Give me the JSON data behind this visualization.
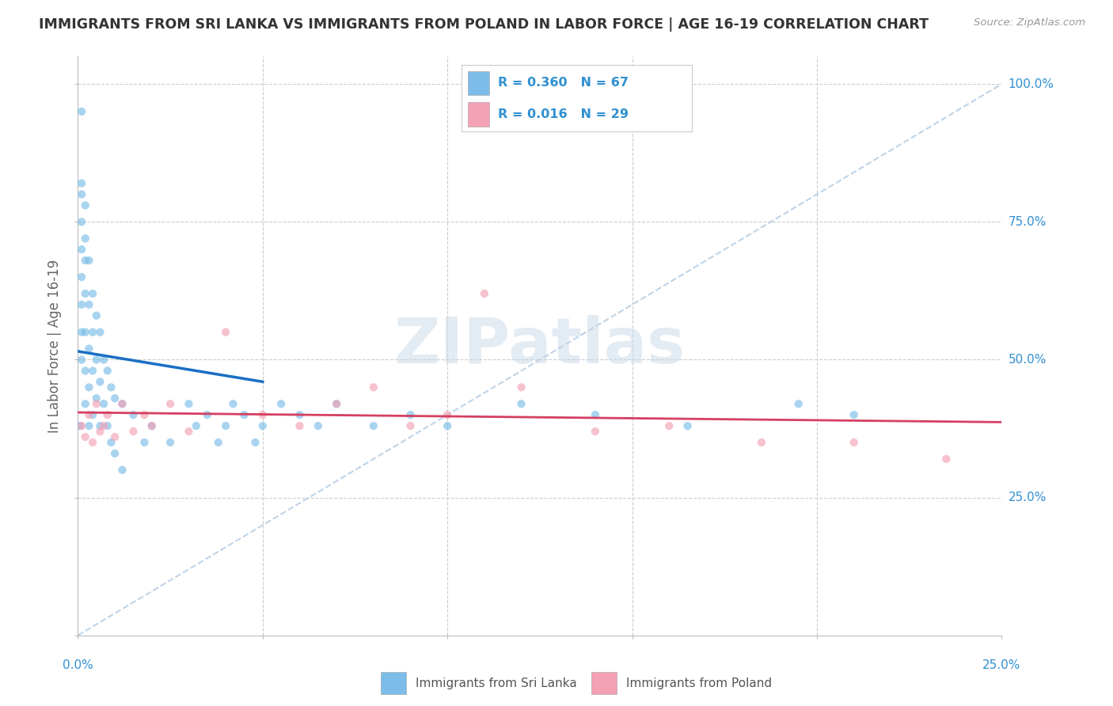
{
  "title": "IMMIGRANTS FROM SRI LANKA VS IMMIGRANTS FROM POLAND IN LABOR FORCE | AGE 16-19 CORRELATION CHART",
  "source": "Source: ZipAtlas.com",
  "ylabel": "In Labor Force | Age 16-19",
  "x_range": [
    0.0,
    0.25
  ],
  "y_range": [
    0.0,
    1.05
  ],
  "sri_lanka_color": "#7bbde8",
  "poland_color": "#f4a0b5",
  "reg_sl_color": "#1a6fc4",
  "reg_pol_color": "#d44060",
  "diag_color": "#b0c8e0",
  "sri_lanka_R": 0.36,
  "sri_lanka_N": 67,
  "poland_R": 0.016,
  "poland_N": 29,
  "legend_text_color": "#3090d0",
  "watermark_color": "#c8d8e8",
  "bg_color": "#ffffff",
  "grid_color": "#cccccc",
  "dot_size": 55,
  "dot_alpha": 0.65,
  "sl_x": [
    0.0005,
    0.001,
    0.001,
    0.001,
    0.001,
    0.001,
    0.001,
    0.001,
    0.001,
    0.001,
    0.002,
    0.002,
    0.002,
    0.002,
    0.002,
    0.002,
    0.002,
    0.003,
    0.003,
    0.003,
    0.003,
    0.003,
    0.004,
    0.004,
    0.004,
    0.004,
    0.005,
    0.005,
    0.005,
    0.006,
    0.006,
    0.006,
    0.007,
    0.007,
    0.008,
    0.008,
    0.009,
    0.009,
    0.01,
    0.01,
    0.012,
    0.012,
    0.015,
    0.018,
    0.02,
    0.025,
    0.03,
    0.032,
    0.035,
    0.038,
    0.04,
    0.042,
    0.045,
    0.048,
    0.05,
    0.055,
    0.06,
    0.065,
    0.07,
    0.08,
    0.09,
    0.1,
    0.12,
    0.14,
    0.165,
    0.195,
    0.21
  ],
  "sl_y": [
    0.38,
    0.95,
    0.82,
    0.8,
    0.75,
    0.7,
    0.65,
    0.6,
    0.55,
    0.5,
    0.78,
    0.72,
    0.68,
    0.62,
    0.55,
    0.48,
    0.42,
    0.68,
    0.6,
    0.52,
    0.45,
    0.38,
    0.62,
    0.55,
    0.48,
    0.4,
    0.58,
    0.5,
    0.43,
    0.55,
    0.46,
    0.38,
    0.5,
    0.42,
    0.48,
    0.38,
    0.45,
    0.35,
    0.43,
    0.33,
    0.42,
    0.3,
    0.4,
    0.35,
    0.38,
    0.35,
    0.42,
    0.38,
    0.4,
    0.35,
    0.38,
    0.42,
    0.4,
    0.35,
    0.38,
    0.42,
    0.4,
    0.38,
    0.42,
    0.38,
    0.4,
    0.38,
    0.42,
    0.4,
    0.38,
    0.42,
    0.4
  ],
  "pol_x": [
    0.001,
    0.002,
    0.003,
    0.004,
    0.005,
    0.006,
    0.007,
    0.008,
    0.01,
    0.012,
    0.015,
    0.018,
    0.02,
    0.025,
    0.03,
    0.04,
    0.05,
    0.06,
    0.07,
    0.08,
    0.09,
    0.1,
    0.11,
    0.12,
    0.14,
    0.16,
    0.185,
    0.21,
    0.235
  ],
  "pol_y": [
    0.38,
    0.36,
    0.4,
    0.35,
    0.42,
    0.37,
    0.38,
    0.4,
    0.36,
    0.42,
    0.37,
    0.4,
    0.38,
    0.42,
    0.37,
    0.55,
    0.4,
    0.38,
    0.42,
    0.45,
    0.38,
    0.4,
    0.62,
    0.45,
    0.37,
    0.38,
    0.35,
    0.35,
    0.32
  ]
}
